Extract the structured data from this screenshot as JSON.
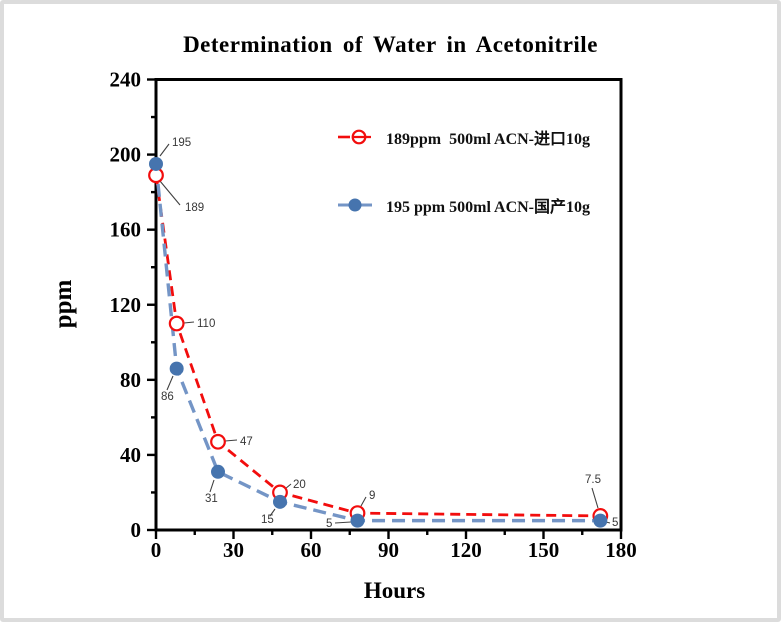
{
  "page": {
    "background": "#ffffff",
    "frame_border_color": "#dcdcdc"
  },
  "chart_data": {
    "type": "line",
    "title": "Determination of Water in Acetonitrile",
    "xlabel": "Hours",
    "ylabel": "ppm",
    "xlim": [
      0,
      180
    ],
    "ylim": [
      0,
      240
    ],
    "x_major_ticks": [
      0,
      30,
      60,
      90,
      120,
      150,
      180
    ],
    "x_minor_step": 15,
    "y_major_ticks": [
      0,
      40,
      80,
      120,
      160,
      200,
      240
    ],
    "y_minor_step": 20,
    "grid": false,
    "legend_position": "inside-top-right",
    "axis_color": "#000000",
    "series": [
      {
        "name": "189ppm  500ml ACN-进口10g",
        "color": "#f20d0d",
        "marker": "open-circle",
        "marker_fill": "#ffffff",
        "line_style": "dashed",
        "x": [
          0,
          8,
          24,
          48,
          78,
          172
        ],
        "y": [
          189,
          110,
          47,
          20,
          9,
          7.5
        ],
        "point_labels": [
          "189",
          "110",
          "47",
          "20",
          "9",
          "7.5"
        ]
      },
      {
        "name": "195 ppm 500ml ACN-国产10g",
        "color": "#7495c6",
        "marker": "filled-circle",
        "marker_fill": "#4674ae",
        "line_style": "dashed",
        "x": [
          0,
          8,
          24,
          48,
          78,
          172
        ],
        "y": [
          195,
          86,
          31,
          15,
          5,
          5
        ],
        "point_labels": [
          "195",
          "86",
          "31",
          "15",
          "5",
          "5"
        ]
      }
    ]
  }
}
